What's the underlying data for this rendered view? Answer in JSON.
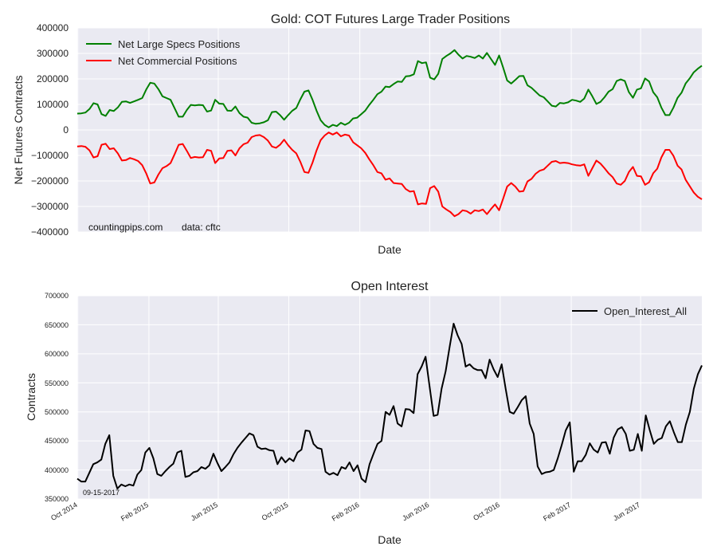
{
  "chart_data": [
    {
      "type": "line",
      "title": "Gold: COT Futures Large Trader Positions",
      "xlabel": "Date",
      "ylabel": "Net Futures Contracts",
      "ylim": [
        -400000,
        400000
      ],
      "yticks": [
        "400000",
        "300000",
        "200000",
        "100000",
        "0",
        "−100000",
        "−200000",
        "−300000",
        "−400000"
      ],
      "ytick_values": [
        400000,
        300000,
        200000,
        100000,
        0,
        -100000,
        -200000,
        -300000,
        -400000
      ],
      "x_start": "2014-09-30",
      "x_end": "2017-09-15",
      "grid": true,
      "legend_position": "top-left",
      "annotations": [
        "countingpips.com",
        "data: cftc"
      ],
      "series": [
        {
          "name": "Net Large Specs Positions",
          "color": "#008000",
          "values": [
            64000,
            65000,
            68000,
            82000,
            105000,
            100000,
            62000,
            55000,
            78000,
            74000,
            88000,
            110000,
            112000,
            106000,
            112000,
            118000,
            125000,
            158000,
            185000,
            182000,
            160000,
            132000,
            125000,
            118000,
            85000,
            52000,
            52000,
            78000,
            98000,
            96000,
            98000,
            97000,
            72000,
            76000,
            118000,
            103000,
            102000,
            76000,
            75000,
            92000,
            66000,
            52000,
            48000,
            28000,
            24000,
            26000,
            30000,
            38000,
            70000,
            72000,
            58000,
            40000,
            58000,
            75000,
            86000,
            120000,
            150000,
            155000,
            118000,
            75000,
            38000,
            20000,
            10000,
            20000,
            15000,
            28000,
            20000,
            28000,
            45000,
            48000,
            62000,
            76000,
            98000,
            118000,
            140000,
            150000,
            170000,
            168000,
            180000,
            190000,
            188000,
            210000,
            212000,
            218000,
            270000,
            262000,
            265000,
            205000,
            198000,
            220000,
            278000,
            290000,
            300000,
            313000,
            295000,
            280000,
            290000,
            287000,
            282000,
            292000,
            280000,
            302000,
            278000,
            255000,
            292000,
            245000,
            194000,
            182000,
            196000,
            211000,
            212000,
            175000,
            165000,
            150000,
            135000,
            128000,
            112000,
            95000,
            92000,
            106000,
            104000,
            108000,
            118000,
            115000,
            110000,
            123000,
            158000,
            132000,
            102000,
            110000,
            128000,
            150000,
            160000,
            192000,
            198000,
            192000,
            148000,
            126000,
            158000,
            163000,
            202000,
            190000,
            148000,
            128000,
            88000,
            58000,
            58000,
            88000,
            126000,
            146000,
            182000,
            202000,
            226000,
            240000,
            252000
          ]
        },
        {
          "name": "Net Commercial Positions",
          "color": "#ff0000",
          "values": [
            -65000,
            -63000,
            -66000,
            -80000,
            -108000,
            -103000,
            -58000,
            -54000,
            -75000,
            -72000,
            -92000,
            -120000,
            -118000,
            -110000,
            -115000,
            -122000,
            -138000,
            -170000,
            -210000,
            -206000,
            -175000,
            -150000,
            -142000,
            -130000,
            -95000,
            -58000,
            -55000,
            -82000,
            -110000,
            -106000,
            -108000,
            -107000,
            -78000,
            -82000,
            -130000,
            -112000,
            -110000,
            -82000,
            -80000,
            -100000,
            -72000,
            -56000,
            -50000,
            -28000,
            -22000,
            -20000,
            -28000,
            -42000,
            -65000,
            -70000,
            -58000,
            -38000,
            -60000,
            -78000,
            -92000,
            -125000,
            -165000,
            -168000,
            -128000,
            -80000,
            -40000,
            -22000,
            -10000,
            -18000,
            -10000,
            -25000,
            -18000,
            -22000,
            -48000,
            -60000,
            -72000,
            -90000,
            -115000,
            -138000,
            -165000,
            -170000,
            -195000,
            -190000,
            -208000,
            -210000,
            -212000,
            -232000,
            -242000,
            -240000,
            -292000,
            -288000,
            -290000,
            -228000,
            -220000,
            -242000,
            -300000,
            -312000,
            -322000,
            -338000,
            -330000,
            -315000,
            -318000,
            -328000,
            -315000,
            -318000,
            -312000,
            -330000,
            -310000,
            -292000,
            -315000,
            -270000,
            -222000,
            -208000,
            -222000,
            -242000,
            -240000,
            -202000,
            -192000,
            -172000,
            -160000,
            -155000,
            -140000,
            -125000,
            -122000,
            -130000,
            -128000,
            -130000,
            -135000,
            -138000,
            -140000,
            -135000,
            -180000,
            -150000,
            -120000,
            -132000,
            -150000,
            -170000,
            -185000,
            -210000,
            -215000,
            -200000,
            -165000,
            -145000,
            -180000,
            -182000,
            -215000,
            -205000,
            -170000,
            -152000,
            -108000,
            -78000,
            -78000,
            -102000,
            -140000,
            -155000,
            -195000,
            -220000,
            -245000,
            -262000,
            -272000
          ]
        }
      ]
    },
    {
      "type": "line",
      "title": "Open Interest",
      "xlabel": "Date",
      "ylabel": "Contracts",
      "ylim": [
        350000,
        700000
      ],
      "yticks": [
        "700000",
        "650000",
        "600000",
        "550000",
        "500000",
        "450000",
        "400000",
        "350000"
      ],
      "ytick_values": [
        700000,
        650000,
        600000,
        550000,
        500000,
        450000,
        400000,
        350000
      ],
      "xticks": [
        "Oct 2014",
        "Feb 2015",
        "Jun 2015",
        "Oct 2015",
        "Feb 2016",
        "Jun 2016",
        "Oct 2016",
        "Feb 2017",
        "Jun 2017"
      ],
      "xtick_dates": [
        "2014-10-01",
        "2015-02-01",
        "2015-06-01",
        "2015-10-01",
        "2016-02-01",
        "2016-06-01",
        "2016-10-01",
        "2017-02-01",
        "2017-06-01"
      ],
      "x_start": "2014-09-30",
      "x_end": "2017-09-15",
      "grid": true,
      "legend_position": "top-right",
      "annotations": [
        "09-15-2017"
      ],
      "series": [
        {
          "name": "Open_Interest_All",
          "color": "#000000",
          "values": [
            385000,
            380000,
            380000,
            395000,
            410000,
            413000,
            418000,
            445000,
            460000,
            390000,
            368000,
            375000,
            372000,
            375000,
            373000,
            392000,
            400000,
            430000,
            438000,
            420000,
            393000,
            390000,
            398000,
            405000,
            411000,
            430000,
            433000,
            388000,
            390000,
            396000,
            398000,
            405000,
            402000,
            408000,
            428000,
            412000,
            398000,
            405000,
            413000,
            427000,
            438000,
            447000,
            455000,
            463000,
            460000,
            440000,
            436000,
            437000,
            434000,
            433000,
            410000,
            422000,
            413000,
            420000,
            415000,
            430000,
            435000,
            468000,
            467000,
            445000,
            438000,
            436000,
            397000,
            392000,
            395000,
            391000,
            405000,
            402000,
            413000,
            398000,
            408000,
            385000,
            379000,
            410000,
            428000,
            445000,
            450000,
            500000,
            495000,
            510000,
            480000,
            475000,
            505000,
            504000,
            498000,
            565000,
            578000,
            595000,
            543000,
            493000,
            495000,
            540000,
            570000,
            612000,
            652000,
            632000,
            617000,
            578000,
            582000,
            575000,
            572000,
            572000,
            558000,
            590000,
            573000,
            560000,
            582000,
            540000,
            500000,
            497000,
            508000,
            520000,
            527000,
            480000,
            462000,
            406000,
            393000,
            396000,
            397000,
            400000,
            420000,
            443000,
            468000,
            482000,
            397000,
            415000,
            415000,
            426000,
            446000,
            435000,
            430000,
            447000,
            448000,
            428000,
            456000,
            470000,
            474000,
            462000,
            433000,
            435000,
            462000,
            433000,
            494000,
            468000,
            445000,
            452000,
            455000,
            475000,
            484000,
            465000,
            448000,
            448000,
            478000,
            500000,
            540000,
            565000,
            580000
          ]
        }
      ]
    }
  ]
}
